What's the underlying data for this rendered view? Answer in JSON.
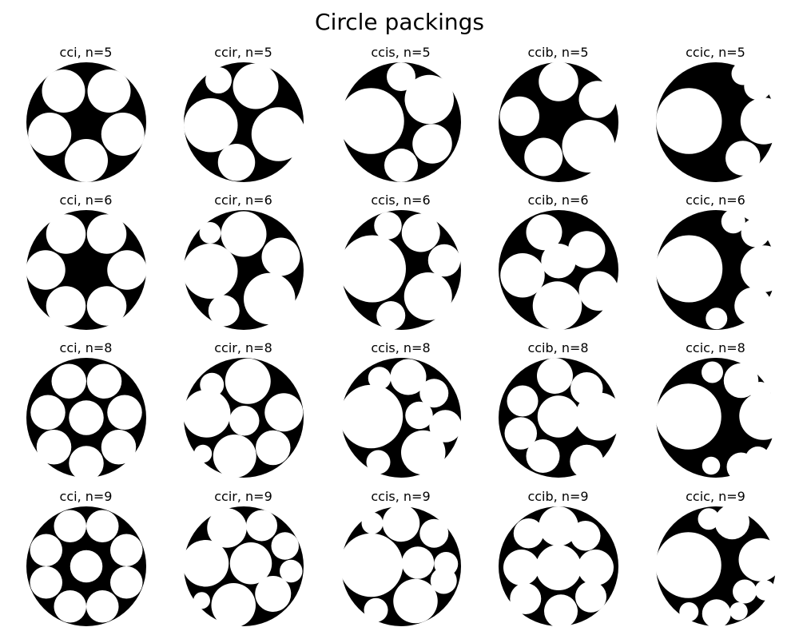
{
  "title": "Circle packings",
  "colors": {
    "disk": "#000000",
    "circle": "#ffffff",
    "background": "#ffffff"
  },
  "panels": [
    {
      "title": "cci, n=5",
      "circles": [
        [
          -0.38,
          0.52,
          0.36
        ],
        [
          0.38,
          0.52,
          0.36
        ],
        [
          -0.61,
          -0.2,
          0.36
        ],
        [
          0.61,
          -0.2,
          0.36
        ],
        [
          0,
          -0.64,
          0.36
        ]
      ]
    },
    {
      "title": "ccir, n=5",
      "circles": [
        [
          -0.42,
          0.7,
          0.22
        ],
        [
          0.2,
          0.6,
          0.38
        ],
        [
          -0.55,
          -0.05,
          0.45
        ],
        [
          0.58,
          -0.2,
          0.45
        ],
        [
          -0.12,
          -0.67,
          0.31
        ]
      ]
    },
    {
      "title": "ccis, n=5",
      "circles": [
        [
          -0.5,
          0.02,
          0.55
        ],
        [
          0.47,
          0.38,
          0.41
        ],
        [
          0.52,
          -0.36,
          0.33
        ],
        [
          0,
          0.76,
          0.24
        ],
        [
          0,
          -0.72,
          0.28
        ]
      ]
    },
    {
      "title": "ccib, n=5",
      "circles": [
        [
          0,
          0.68,
          0.33
        ],
        [
          0.65,
          0.38,
          0.31
        ],
        [
          -0.65,
          0.1,
          0.33
        ],
        [
          0.5,
          -0.4,
          0.44
        ],
        [
          -0.25,
          -0.58,
          0.32
        ]
      ]
    },
    {
      "title": "ccic, n=5",
      "circles": [
        [
          -0.45,
          0.02,
          0.55
        ],
        [
          0.45,
          0.81,
          0.19
        ],
        [
          0.7,
          0.6,
          0.23
        ],
        [
          0.8,
          0.02,
          0.39
        ],
        [
          0.45,
          -0.6,
          0.29
        ]
      ]
    },
    {
      "title": "cci, n=6",
      "circles": [
        [
          -0.34,
          0.6,
          0.33
        ],
        [
          0.34,
          0.6,
          0.33
        ],
        [
          -0.68,
          0,
          0.33
        ],
        [
          0.68,
          0,
          0.33
        ],
        [
          -0.34,
          -0.6,
          0.33
        ],
        [
          0.34,
          -0.6,
          0.33
        ]
      ]
    },
    {
      "title": "ccir, n=6",
      "circles": [
        [
          -0.56,
          0.62,
          0.18
        ],
        [
          0,
          0.6,
          0.38
        ],
        [
          0.62,
          0.22,
          0.32
        ],
        [
          -0.56,
          -0.02,
          0.46
        ],
        [
          0.43,
          -0.48,
          0.43
        ],
        [
          -0.33,
          -0.68,
          0.26
        ]
      ]
    },
    {
      "title": "ccis, n=6",
      "circles": [
        [
          -0.48,
          0.02,
          0.56
        ],
        [
          -0.22,
          0.74,
          0.23
        ],
        [
          0.33,
          0.62,
          0.32
        ],
        [
          0.72,
          0.16,
          0.27
        ],
        [
          0.45,
          -0.44,
          0.4
        ],
        [
          -0.17,
          -0.76,
          0.24
        ]
      ]
    },
    {
      "title": "ccib, n=6",
      "circles": [
        [
          -0.24,
          0.63,
          0.3
        ],
        [
          0.47,
          0.34,
          0.31
        ],
        [
          -0.6,
          -0.09,
          0.37
        ],
        [
          0,
          0.15,
          0.29
        ],
        [
          0.67,
          -0.35,
          0.33
        ],
        [
          -0.02,
          -0.6,
          0.41
        ]
      ]
    },
    {
      "title": "ccic, n=6",
      "circles": [
        [
          -0.45,
          0.02,
          0.56
        ],
        [
          0.29,
          0.81,
          0.2
        ],
        [
          0.66,
          0.62,
          0.24
        ],
        [
          0.8,
          0.02,
          0.39
        ],
        [
          0.62,
          -0.6,
          0.31
        ],
        [
          0.01,
          -0.81,
          0.18
        ]
      ]
    },
    {
      "title": "cci, n=8",
      "circles": [
        [
          -0.29,
          0.61,
          0.29
        ],
        [
          0.3,
          0.61,
          0.29
        ],
        [
          -0.64,
          0.09,
          0.29
        ],
        [
          0.64,
          0.09,
          0.29
        ],
        [
          -0.54,
          -0.49,
          0.29
        ],
        [
          0.54,
          -0.49,
          0.29
        ],
        [
          0,
          -0.76,
          0.29
        ],
        [
          0,
          0,
          0.29
        ]
      ]
    },
    {
      "title": "ccir, n=8",
      "circles": [
        [
          -0.53,
          0.55,
          0.2
        ],
        [
          0.07,
          0.61,
          0.38
        ],
        [
          -0.62,
          0.07,
          0.4
        ],
        [
          0.67,
          0.09,
          0.32
        ],
        [
          0.01,
          -0.05,
          0.25
        ],
        [
          0.49,
          -0.5,
          0.29
        ],
        [
          -0.68,
          -0.6,
          0.15
        ],
        [
          -0.15,
          -0.64,
          0.36
        ]
      ]
    },
    {
      "title": "ccis, n=8",
      "circles": [
        [
          -0.5,
          0.02,
          0.53
        ],
        [
          -0.36,
          0.66,
          0.19
        ],
        [
          0.12,
          0.68,
          0.3
        ],
        [
          0.55,
          0.41,
          0.24
        ],
        [
          0.3,
          0.04,
          0.23
        ],
        [
          0.74,
          -0.14,
          0.27
        ],
        [
          0.37,
          -0.58,
          0.37
        ],
        [
          -0.38,
          -0.74,
          0.2
        ]
      ]
    },
    {
      "title": "ccib, n=8",
      "circles": [
        [
          -0.06,
          0.7,
          0.3
        ],
        [
          0.47,
          0.49,
          0.27
        ],
        [
          -0.6,
          0.28,
          0.26
        ],
        [
          0.68,
          0.02,
          0.4
        ],
        [
          0,
          0.02,
          0.35
        ],
        [
          -0.63,
          -0.26,
          0.27
        ],
        [
          -0.26,
          -0.64,
          0.28
        ],
        [
          0.47,
          -0.73,
          0.28
        ]
      ]
    },
    {
      "title": "ccic, n=8",
      "circles": [
        [
          -0.46,
          0.02,
          0.55
        ],
        [
          -0.06,
          0.76,
          0.18
        ],
        [
          0.42,
          0.62,
          0.29
        ],
        [
          0.74,
          0.43,
          0.17
        ],
        [
          0.79,
          0.03,
          0.4
        ],
        [
          0.7,
          -0.69,
          0.21
        ],
        [
          0.42,
          -0.82,
          0.24
        ],
        [
          -0.08,
          -0.8,
          0.15
        ]
      ]
    },
    {
      "title": "cci, n=9",
      "circles": [
        [
          -0.27,
          0.67,
          0.27
        ],
        [
          0.27,
          0.67,
          0.27
        ],
        [
          -0.67,
          0.27,
          0.27
        ],
        [
          0.67,
          0.27,
          0.27
        ],
        [
          -0.67,
          -0.27,
          0.27
        ],
        [
          0.67,
          -0.27,
          0.27
        ],
        [
          -0.27,
          -0.67,
          0.27
        ],
        [
          0.27,
          -0.67,
          0.27
        ],
        [
          0,
          0,
          0.27
        ]
      ]
    },
    {
      "title": "ccir, n=9",
      "circles": [
        [
          -0.28,
          0.64,
          0.33
        ],
        [
          0.3,
          0.68,
          0.26
        ],
        [
          0.69,
          0.34,
          0.23
        ],
        [
          0.79,
          -0.08,
          0.19
        ],
        [
          -0.64,
          0.05,
          0.39
        ],
        [
          0.12,
          0.05,
          0.35
        ],
        [
          0.49,
          -0.46,
          0.3
        ],
        [
          -0.7,
          -0.57,
          0.14
        ],
        [
          -0.17,
          -0.65,
          0.37
        ]
      ]
    },
    {
      "title": "ccis, n=9",
      "circles": [
        [
          -0.5,
          0.02,
          0.53
        ],
        [
          -0.48,
          0.72,
          0.18
        ],
        [
          0,
          0.72,
          0.31
        ],
        [
          0.55,
          0.55,
          0.24
        ],
        [
          0.28,
          0.06,
          0.27
        ],
        [
          0.75,
          0.04,
          0.2
        ],
        [
          0.71,
          -0.24,
          0.22
        ],
        [
          0.24,
          -0.58,
          0.37
        ],
        [
          -0.42,
          -0.73,
          0.2
        ]
      ]
    },
    {
      "title": "ccib, n=9",
      "circles": [
        [
          0,
          0.67,
          0.33
        ],
        [
          -0.5,
          0.55,
          0.25
        ],
        [
          0.45,
          0.51,
          0.25
        ],
        [
          -0.62,
          -0.02,
          0.3
        ],
        [
          0,
          -0.02,
          0.38
        ],
        [
          0.62,
          -0.02,
          0.3
        ],
        [
          -0.55,
          -0.54,
          0.26
        ],
        [
          0.04,
          -0.75,
          0.28
        ],
        [
          0.54,
          -0.51,
          0.26
        ]
      ]
    },
    {
      "title": "ccic, n=9",
      "circles": [
        [
          -0.46,
          0.02,
          0.55
        ],
        [
          -0.12,
          0.79,
          0.18
        ],
        [
          0.27,
          0.74,
          0.29
        ],
        [
          0.74,
          0.11,
          0.36
        ],
        [
          0.48,
          -0.42,
          0.2
        ],
        [
          0.82,
          -0.4,
          0.17
        ],
        [
          -0.45,
          -0.76,
          0.16
        ],
        [
          0.01,
          -0.79,
          0.24
        ],
        [
          0.38,
          -0.75,
          0.15
        ]
      ]
    }
  ]
}
